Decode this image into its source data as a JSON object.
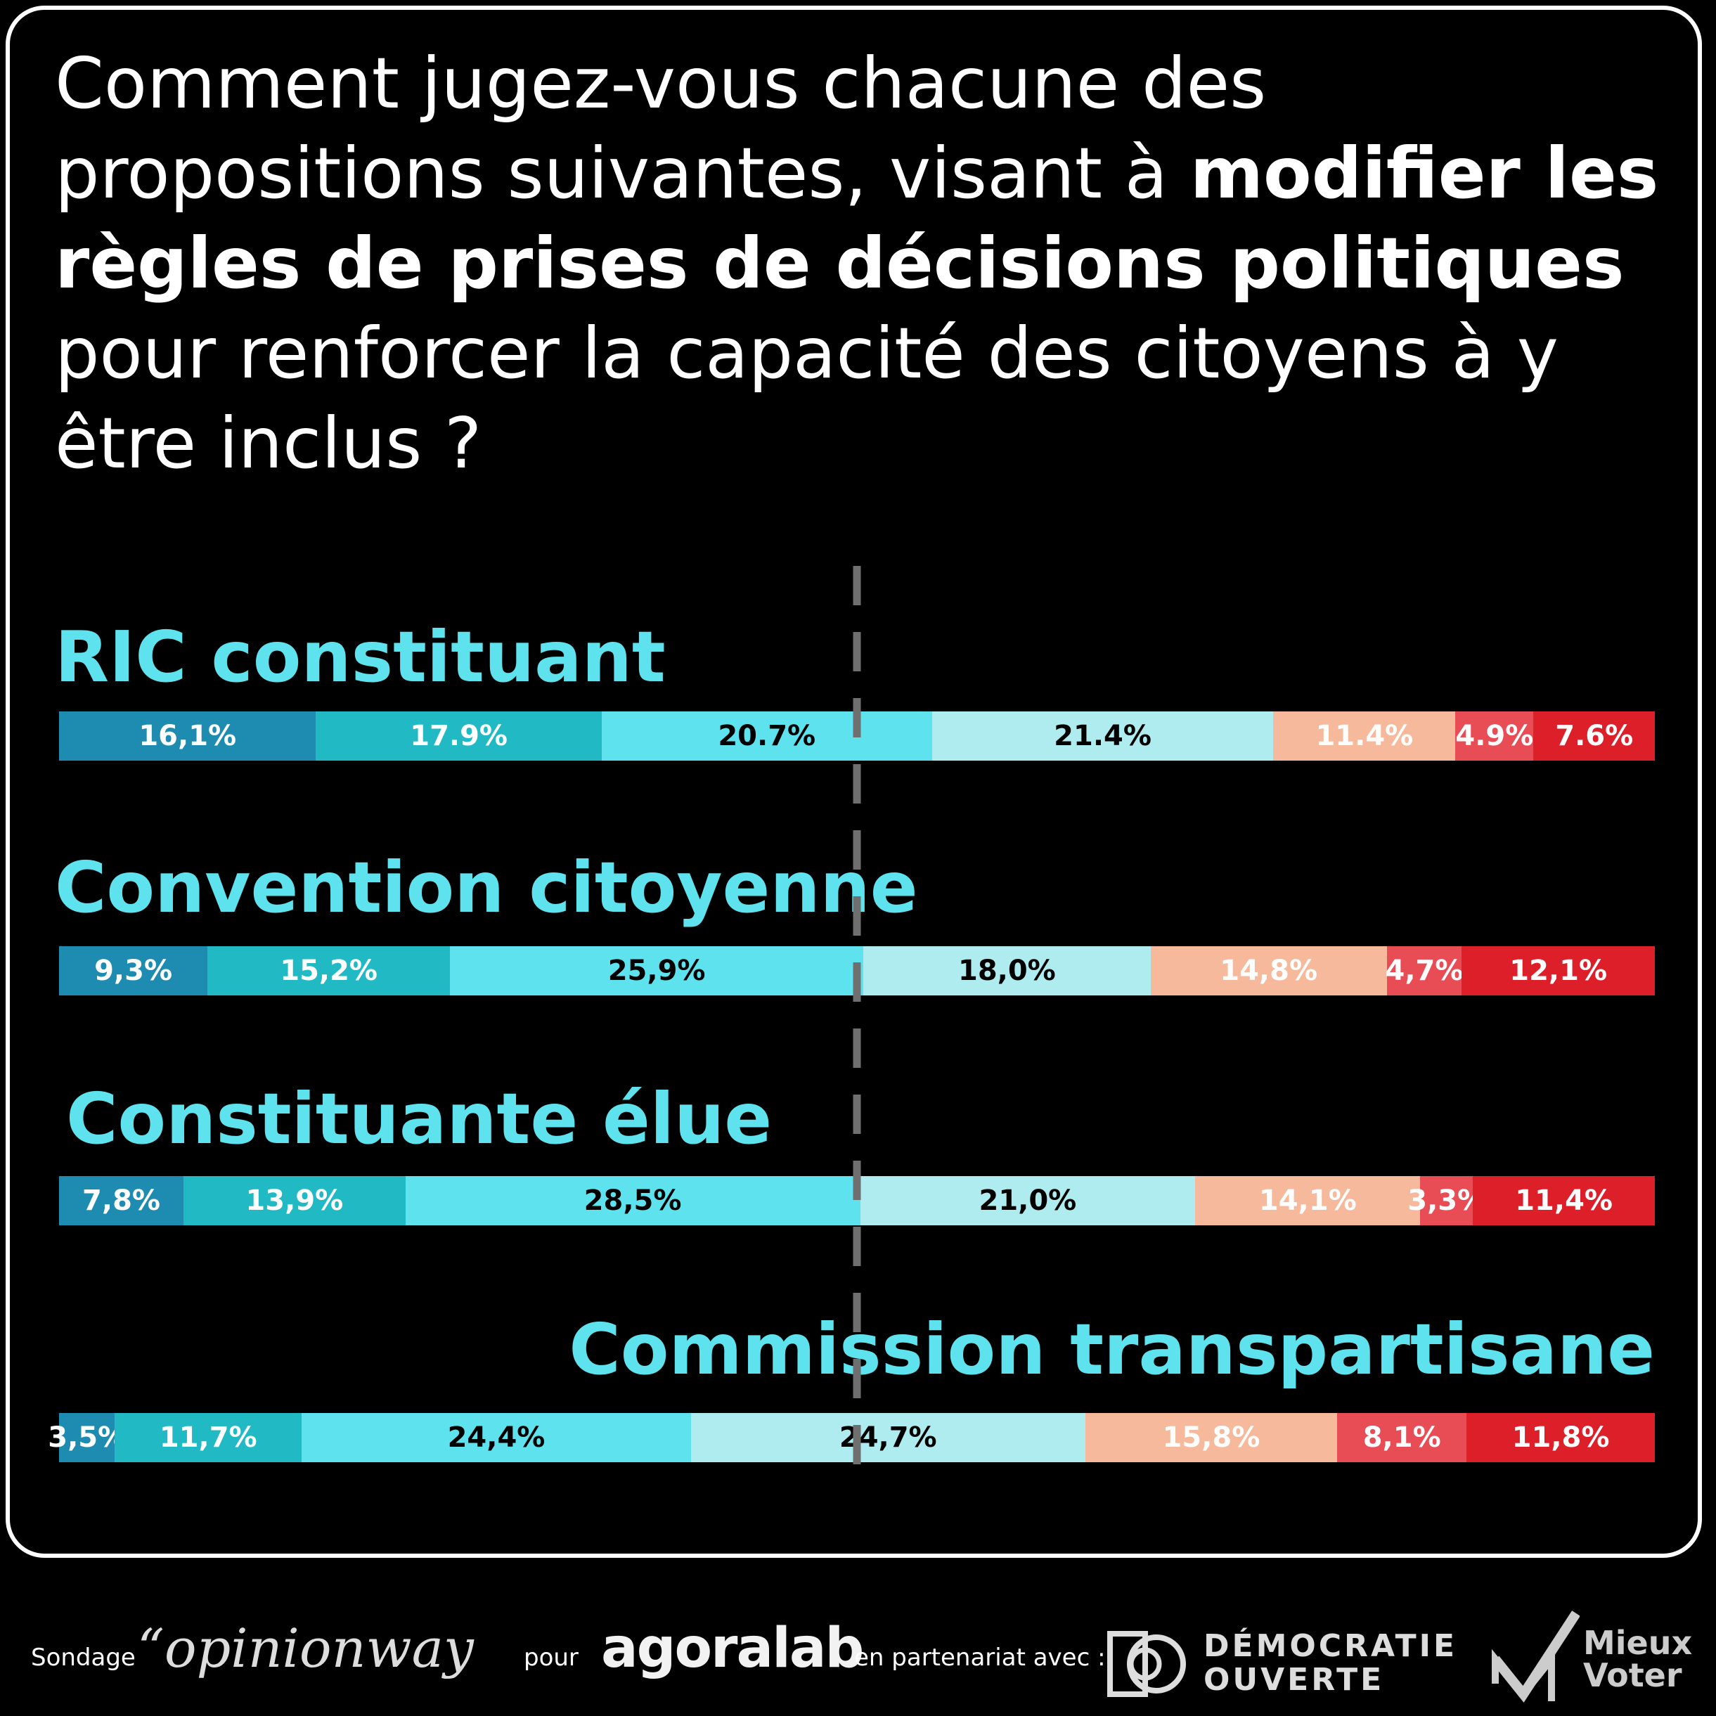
{
  "question": {
    "part1": "Comment jugez-vous chacune des propositions suivantes, visant à ",
    "bold": "modifier les règles de prises de décisions politiques",
    "part2": " pour renforcer la capacité des citoyens à y être inclus ?"
  },
  "colors": [
    "#1e8bb0",
    "#20b9c4",
    "#5ee3ee",
    "#aeecef",
    "#f7b99b",
    "#e84c55",
    "#dc1f29"
  ],
  "text_colors": [
    "#ffffff",
    "#ffffff",
    "#000000",
    "#000000",
    "#ffffff",
    "#ffffff",
    "#ffffff"
  ],
  "chart_data": {
    "type": "bar",
    "stacked": true,
    "orientation": "horizontal",
    "median_line": 50,
    "categories": [
      "RIC constituant",
      "Convention citoyenne",
      "Constituante élue",
      "Commission transpartisane"
    ],
    "series_values": [
      [
        16.1,
        17.9,
        20.7,
        21.4,
        11.4,
        4.9,
        7.6
      ],
      [
        9.3,
        15.2,
        25.9,
        18.0,
        14.8,
        4.7,
        12.1
      ],
      [
        7.8,
        13.9,
        28.5,
        21.0,
        14.1,
        3.3,
        11.4
      ],
      [
        3.5,
        11.7,
        24.4,
        24.7,
        15.8,
        8.1,
        11.8
      ]
    ],
    "data_labels": [
      [
        "16,1%",
        "17.9%",
        "20.7%",
        "21.4%",
        "11.4%",
        "4.9%",
        "7.6%"
      ],
      [
        "9,3%",
        "15,2%",
        "25,9%",
        "18,0%",
        "14,8%",
        "4,7%",
        "12,1%"
      ],
      [
        "7,8%",
        "13,9%",
        "28,5%",
        "21,0%",
        "14,1%",
        "3,3%",
        "11,4%"
      ],
      [
        "3,5%",
        "11,7%",
        "24,4%",
        "24,7%",
        "15,8%",
        "8,1%",
        "11,8%"
      ]
    ]
  },
  "footer": {
    "sondage": "Sondage",
    "opinionway": "“opinionway",
    "pour": "pour",
    "agoralab": "agoralab",
    "partenariat": "en partenariat avec :",
    "democratie_line1": "DÉMOCRATIE",
    "democratie_line2": "OUVERTE",
    "mieux_line1": "Mieux",
    "mieux_line2": "Voter"
  }
}
